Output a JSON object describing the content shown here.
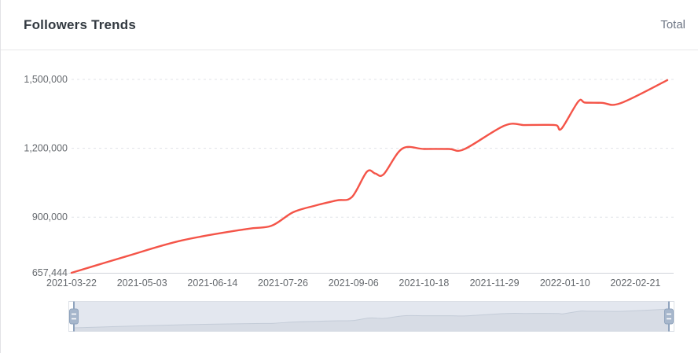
{
  "header": {
    "title": "Followers Trends",
    "legend_label": "Total"
  },
  "colors": {
    "line": "#f45448",
    "title_text": "#333a41",
    "secondary_text": "#6d7584",
    "axis_text": "#65696e",
    "gridline": "#e0e3e7",
    "axis_line": "#d0d4da",
    "divider": "#e7e7ea",
    "slider_border": "#dce0e7",
    "slider_fill": "#e3e7ef",
    "slider_shadow_fill": "#d7dce5",
    "slider_shadow_line": "#c4ccd8",
    "slider_handle": "#a7b7cc",
    "slider_handle_stroke": "#8fa3bd"
  },
  "chart_data": {
    "type": "line",
    "title": "Followers Trends",
    "legend": [
      "Total"
    ],
    "legend_position": "top-right",
    "xlabel": "",
    "ylabel": "",
    "grid": "dashed-horizontal",
    "x_axis": {
      "type": "time",
      "tick_labels": [
        "2021-03-22",
        "2021-05-03",
        "2021-06-14",
        "2021-07-26",
        "2021-09-06",
        "2021-10-18",
        "2021-11-29",
        "2022-01-10",
        "2022-02-21"
      ],
      "tick_interval_days": 42,
      "total_days": 355
    },
    "y_axis": {
      "min": 657444,
      "max": 1500000,
      "ticks": [
        {
          "label": "657,444",
          "value": 657444
        },
        {
          "label": "900,000",
          "value": 900000
        },
        {
          "label": "1,200,000",
          "value": 1200000
        },
        {
          "label": "1,500,000",
          "value": 1500000
        }
      ]
    },
    "series": [
      {
        "name": "Total",
        "color": "#f45448",
        "points": [
          {
            "date": "2021-03-22",
            "day": 0,
            "value": 657444
          },
          {
            "date": "2021-04-24",
            "day": 33,
            "value": 730000
          },
          {
            "date": "2021-05-27",
            "day": 66,
            "value": 799000
          },
          {
            "date": "2021-07-04",
            "day": 104,
            "value": 848000
          },
          {
            "date": "2021-07-19",
            "day": 119,
            "value": 862000
          },
          {
            "date": "2021-08-01",
            "day": 132,
            "value": 921000
          },
          {
            "date": "2021-08-14",
            "day": 145,
            "value": 950000
          },
          {
            "date": "2021-08-27",
            "day": 158,
            "value": 973000
          },
          {
            "date": "2021-09-05",
            "day": 167,
            "value": 987000
          },
          {
            "date": "2021-09-14",
            "day": 176,
            "value": 1098000
          },
          {
            "date": "2021-09-19",
            "day": 181,
            "value": 1090000
          },
          {
            "date": "2021-09-24",
            "day": 186,
            "value": 1087000
          },
          {
            "date": "2021-10-05",
            "day": 197,
            "value": 1198000
          },
          {
            "date": "2021-10-18",
            "day": 210,
            "value": 1197000
          },
          {
            "date": "2021-11-02",
            "day": 225,
            "value": 1197000
          },
          {
            "date": "2021-11-11",
            "day": 234,
            "value": 1196000
          },
          {
            "date": "2021-12-05",
            "day": 258,
            "value": 1299000
          },
          {
            "date": "2021-12-17",
            "day": 270,
            "value": 1301000
          },
          {
            "date": "2021-12-29",
            "day": 282,
            "value": 1302000
          },
          {
            "date": "2022-01-05",
            "day": 289,
            "value": 1300000
          },
          {
            "date": "2022-01-08",
            "day": 292,
            "value": 1286000
          },
          {
            "date": "2022-01-18",
            "day": 302,
            "value": 1404000
          },
          {
            "date": "2022-01-22",
            "day": 306,
            "value": 1399000
          },
          {
            "date": "2022-02-01",
            "day": 316,
            "value": 1398000
          },
          {
            "date": "2022-02-12",
            "day": 327,
            "value": 1396000
          },
          {
            "date": "2022-03-12",
            "day": 355,
            "value": 1497000
          }
        ]
      }
    ]
  },
  "slider": {
    "type": "range-selector",
    "start_pct": 0,
    "end_pct": 100
  }
}
